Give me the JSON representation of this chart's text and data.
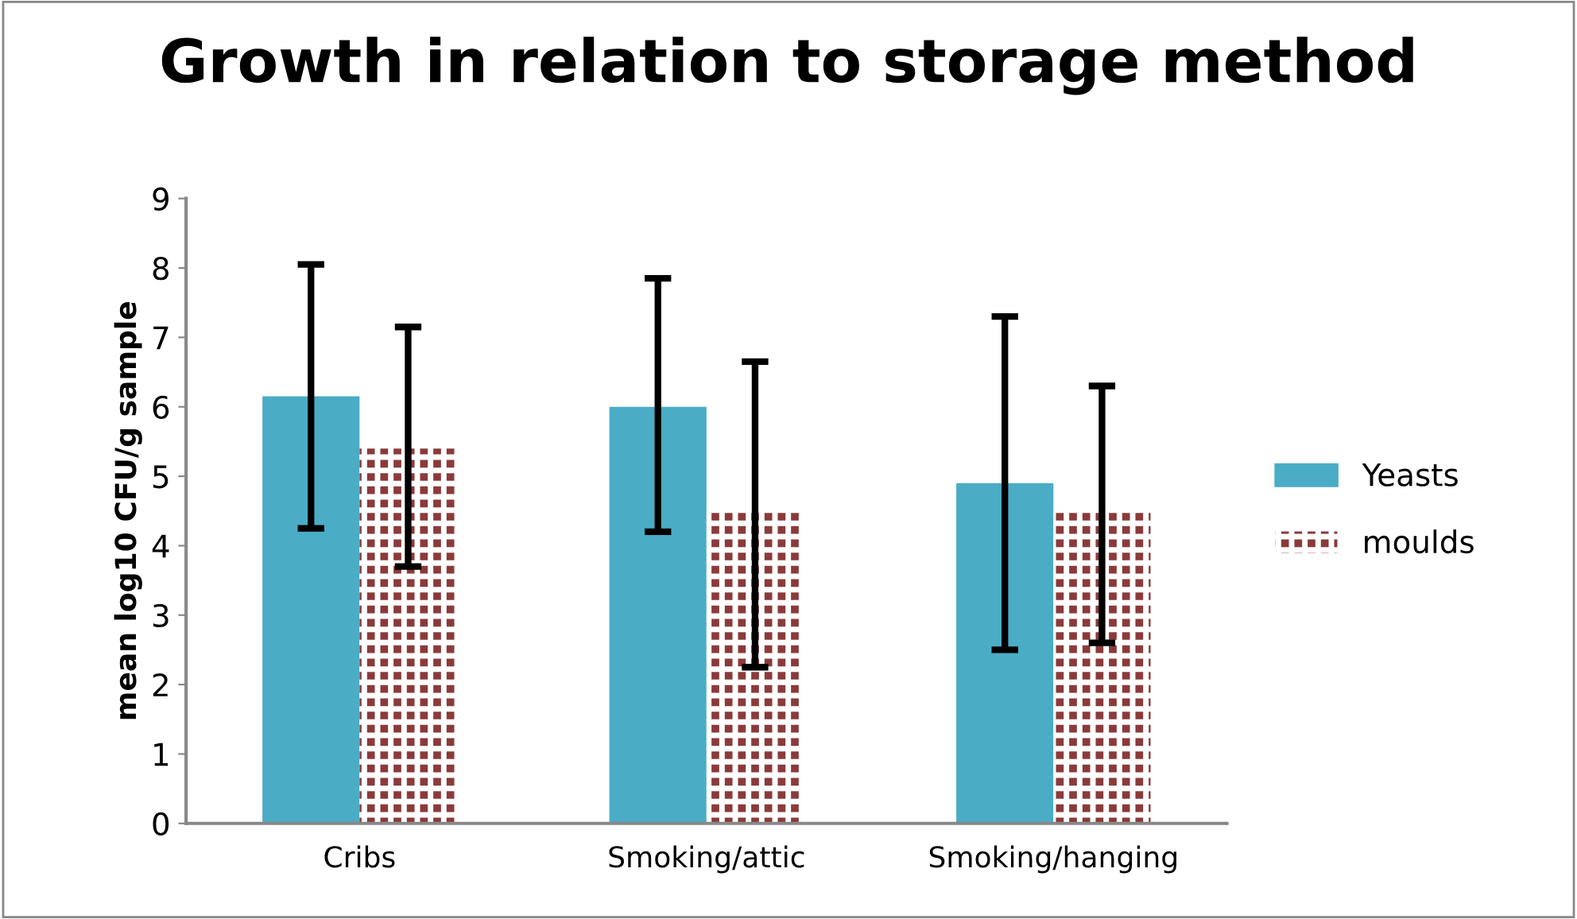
{
  "chart_data": {
    "type": "bar",
    "title": "Growth in relation to storage method",
    "ylabel": "mean log10 CFU/g sample",
    "categories": [
      "Cribs",
      "Smoking/attic",
      "Smoking/hanging"
    ],
    "series": [
      {
        "name": "Yeasts",
        "color": "#4bacc6",
        "values": [
          6.15,
          6.0,
          4.9
        ],
        "errors": [
          [
            4.25,
            8.05
          ],
          [
            4.2,
            7.85
          ],
          [
            2.5,
            7.3
          ]
        ]
      },
      {
        "name": "moulds",
        "color": "#8b3a3a",
        "values": [
          5.4,
          4.5,
          4.5
        ],
        "errors": [
          [
            3.7,
            7.15
          ],
          [
            2.25,
            6.65
          ],
          [
            2.6,
            6.3
          ]
        ]
      }
    ],
    "ylim": [
      0,
      9
    ],
    "yticks": [
      0,
      1,
      2,
      3,
      4,
      5,
      6,
      7,
      8,
      9
    ],
    "grid": false,
    "legend": "right"
  }
}
